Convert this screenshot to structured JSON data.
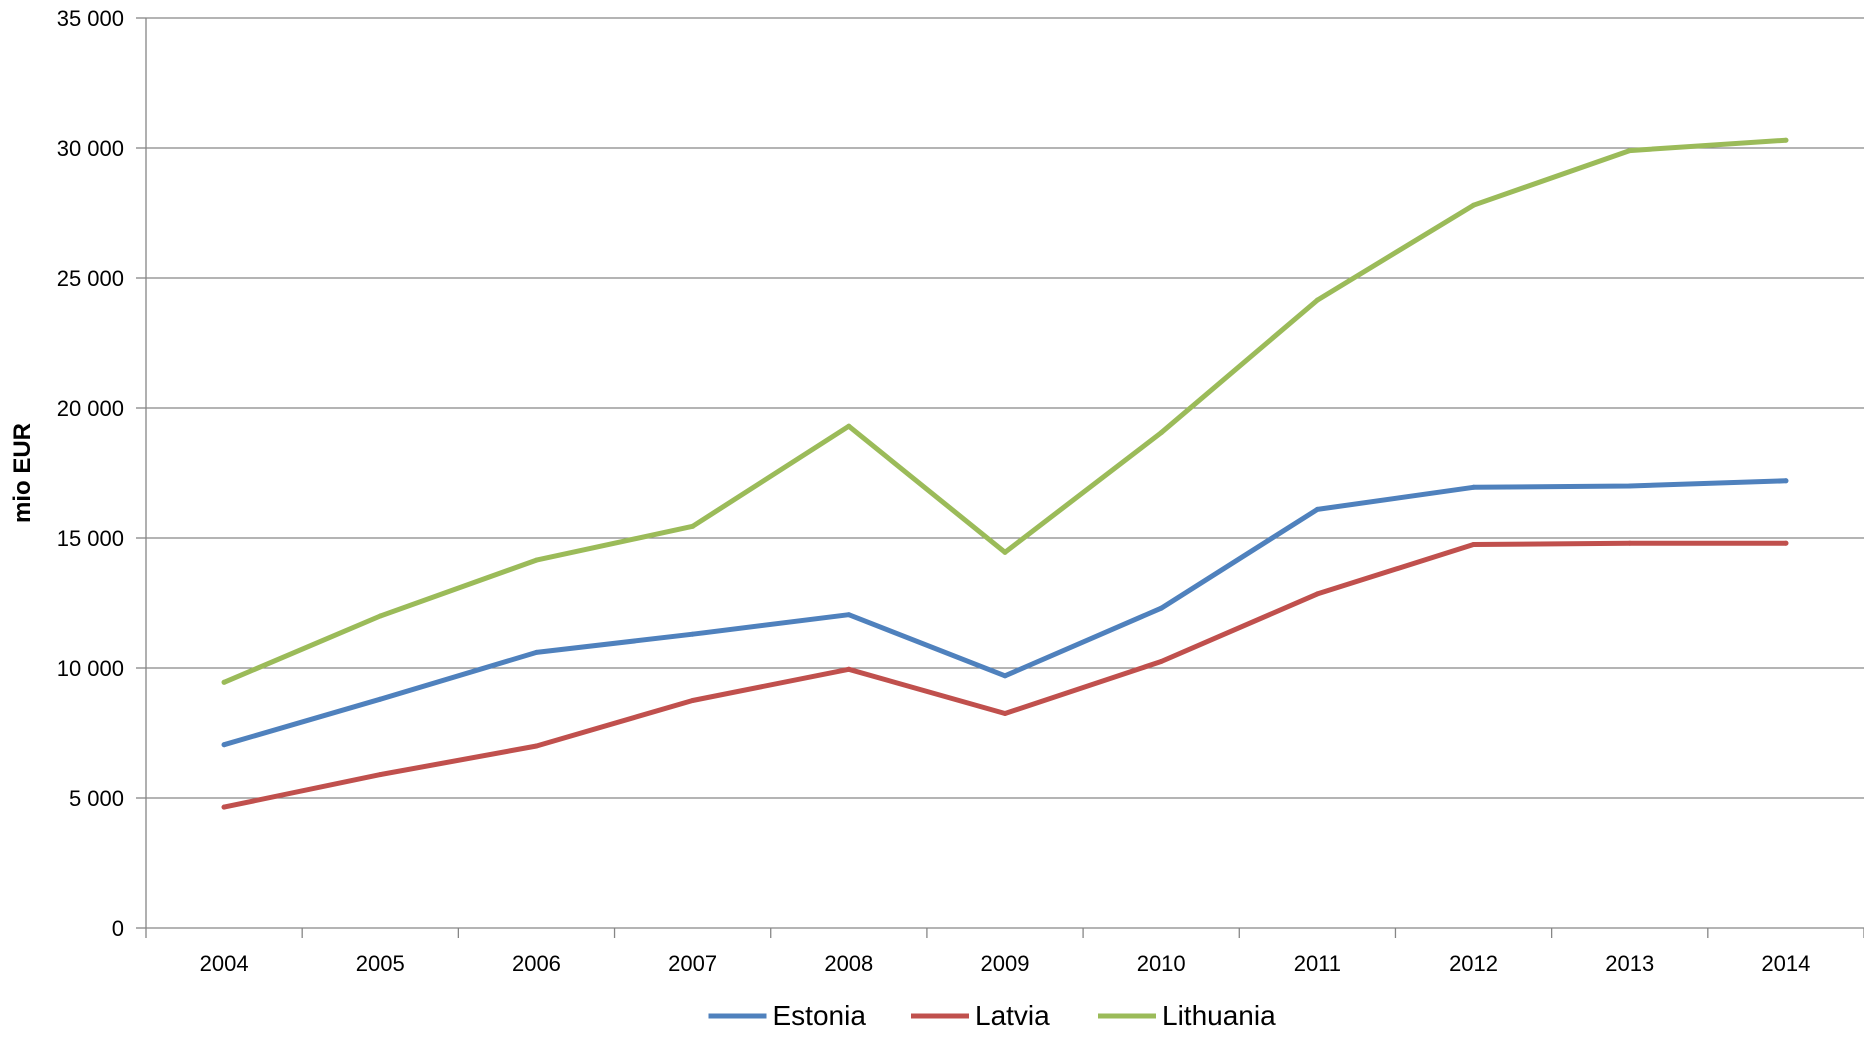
{
  "chart_data": {
    "type": "line",
    "title": "",
    "xlabel": "",
    "ylabel": "mio EUR",
    "ylim": [
      0,
      35000
    ],
    "yticks": [
      0,
      5000,
      10000,
      15000,
      20000,
      25000,
      30000,
      35000
    ],
    "ytick_labels": [
      "0",
      "5 000",
      "10 000",
      "15 000",
      "20 000",
      "25 000",
      "30 000",
      "35 000"
    ],
    "categories": [
      "2004",
      "2005",
      "2006",
      "2007",
      "2008",
      "2009",
      "2010",
      "2011",
      "2012",
      "2013",
      "2014"
    ],
    "grid": "horizontal",
    "legend_position": "bottom",
    "series": [
      {
        "name": "Estonia",
        "color": "#4f81bd",
        "values": [
          7050,
          8800,
          10600,
          11300,
          12050,
          9700,
          12300,
          16100,
          16950,
          17000,
          17200
        ]
      },
      {
        "name": "Latvia",
        "color": "#c0504d",
        "values": [
          4650,
          5900,
          7000,
          8750,
          9950,
          8250,
          10250,
          12850,
          14750,
          14800,
          14800
        ]
      },
      {
        "name": "Lithuania",
        "color": "#9bbb59",
        "values": [
          9450,
          12000,
          14150,
          15450,
          19300,
          14450,
          19050,
          24150,
          27800,
          29900,
          30300
        ]
      }
    ]
  }
}
